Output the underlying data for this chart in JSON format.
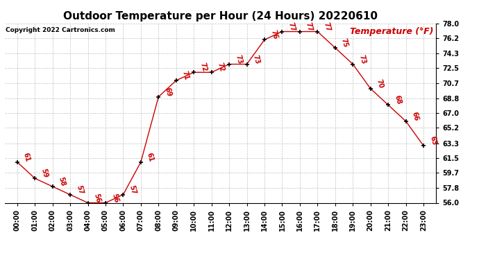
{
  "title": "Outdoor Temperature per Hour (24 Hours) 20220610",
  "copyright": "Copyright 2022 Cartronics.com",
  "legend_label": "Temperature (°F)",
  "hours": [
    "00:00",
    "01:00",
    "02:00",
    "03:00",
    "04:00",
    "05:00",
    "06:00",
    "07:00",
    "08:00",
    "09:00",
    "10:00",
    "11:00",
    "12:00",
    "13:00",
    "14:00",
    "15:00",
    "16:00",
    "17:00",
    "18:00",
    "19:00",
    "20:00",
    "21:00",
    "22:00",
    "23:00"
  ],
  "temperatures": [
    61,
    59,
    58,
    57,
    56,
    56,
    57,
    61,
    69,
    71,
    72,
    72,
    73,
    73,
    76,
    77,
    77,
    77,
    75,
    73,
    70,
    68,
    66,
    63
  ],
  "temp_labels": [
    "61",
    "59",
    "58",
    "57",
    "56",
    "56",
    "57",
    "61",
    "69",
    "71",
    "72",
    "72",
    "73",
    "73",
    "76",
    "77",
    "77",
    "77",
    "75",
    "73",
    "70",
    "68",
    "66",
    "63"
  ],
  "ylim_min": 56.0,
  "ylim_max": 78.0,
  "yticks": [
    56.0,
    57.8,
    59.7,
    61.5,
    63.3,
    65.2,
    67.0,
    68.8,
    70.7,
    72.5,
    74.3,
    76.2,
    78.0
  ],
  "line_color": "#cc0000",
  "marker_color": "#000000",
  "title_fontsize": 11,
  "copyright_fontsize": 6.5,
  "legend_fontsize": 9,
  "label_fontsize": 7,
  "tick_fontsize": 7,
  "background_color": "#ffffff",
  "grid_color": "#c0c0c0"
}
